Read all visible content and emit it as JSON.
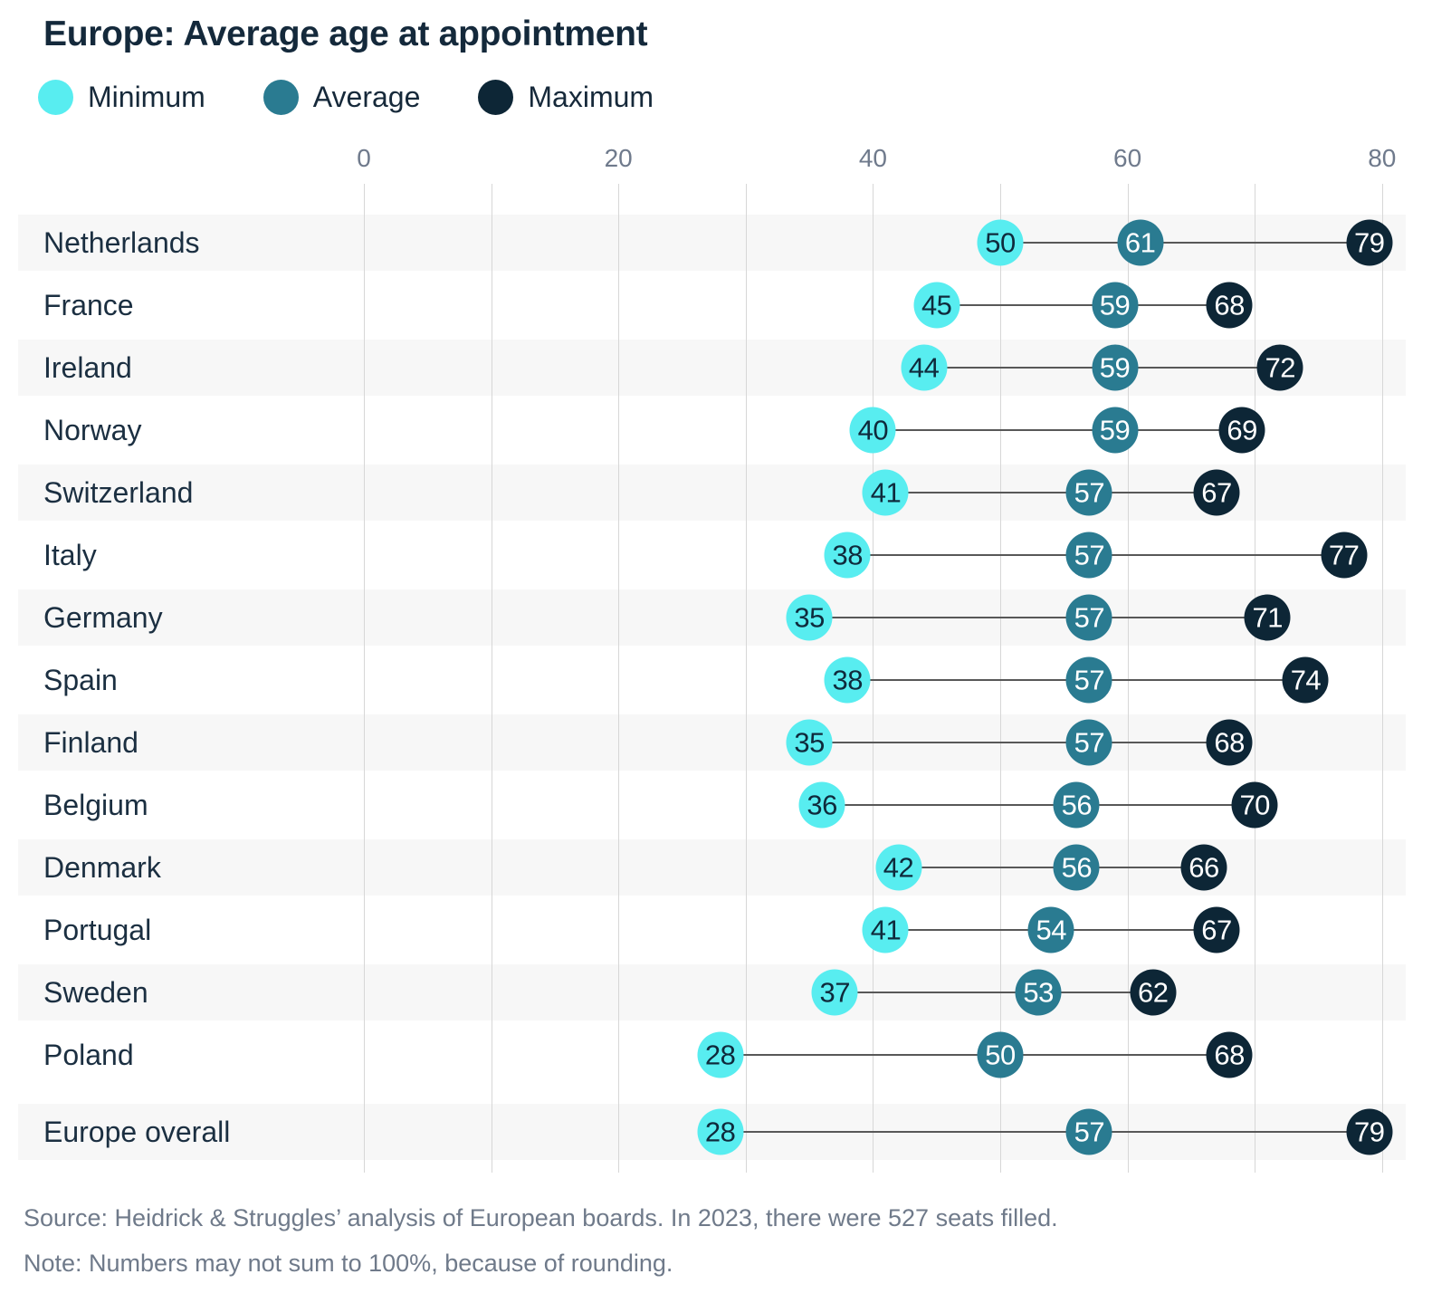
{
  "title": "Europe: Average age at appointment",
  "legend": [
    {
      "label": "Minimum",
      "color": "#58edf0"
    },
    {
      "label": "Average",
      "color": "#2a7b91"
    },
    {
      "label": "Maximum",
      "color": "#0d2636"
    }
  ],
  "chart_data": {
    "type": "dumbbell",
    "title": "Europe: Average age at appointment",
    "xlabel": "",
    "ylabel": "",
    "xlim": [
      0,
      80
    ],
    "x_ticks": [
      0,
      20,
      40,
      60,
      80
    ],
    "grid_step": 10,
    "grid": "vertical, every 10 units",
    "legend_position": "top-left",
    "series": [
      "Minimum",
      "Average",
      "Maximum"
    ],
    "rows": [
      {
        "label": "Netherlands",
        "min": 50,
        "avg": 61,
        "max": 79
      },
      {
        "label": "France",
        "min": 45,
        "avg": 59,
        "max": 68
      },
      {
        "label": "Ireland",
        "min": 44,
        "avg": 59,
        "max": 72
      },
      {
        "label": "Norway",
        "min": 40,
        "avg": 59,
        "max": 69
      },
      {
        "label": "Switzerland",
        "min": 41,
        "avg": 57,
        "max": 67
      },
      {
        "label": "Italy",
        "min": 38,
        "avg": 57,
        "max": 77
      },
      {
        "label": "Germany",
        "min": 35,
        "avg": 57,
        "max": 71
      },
      {
        "label": "Spain",
        "min": 38,
        "avg": 57,
        "max": 74
      },
      {
        "label": "Finland",
        "min": 35,
        "avg": 57,
        "max": 68
      },
      {
        "label": "Belgium",
        "min": 36,
        "avg": 56,
        "max": 70
      },
      {
        "label": "Denmark",
        "min": 42,
        "avg": 56,
        "max": 66
      },
      {
        "label": "Portugal",
        "min": 41,
        "avg": 54,
        "max": 67
      },
      {
        "label": "Sweden",
        "min": 37,
        "avg": 53,
        "max": 62
      },
      {
        "label": "Poland",
        "min": 28,
        "avg": 50,
        "max": 68
      },
      {
        "label": "Europe overall",
        "min": 28,
        "avg": 57,
        "max": 79,
        "overall": true
      }
    ]
  },
  "footer": {
    "source": "Source: Heidrick & Struggles’ analysis of European boards. In 2023, there were 527 seats filled.",
    "note": "Note: Numbers may not sum to 100%, because of rounding."
  },
  "colors": {
    "min": "#58edf0",
    "avg": "#2a7b91",
    "max": "#0d2636",
    "min_text": "#0f2a3c",
    "avg_max_text": "#ffffff",
    "heading_text": "#14293b",
    "row_label_text": "#1b2f41",
    "muted_text": "#6f7a8a",
    "row_band": "#f7f7f7",
    "gridline": "#d7d7d7",
    "connector": "#585858"
  }
}
